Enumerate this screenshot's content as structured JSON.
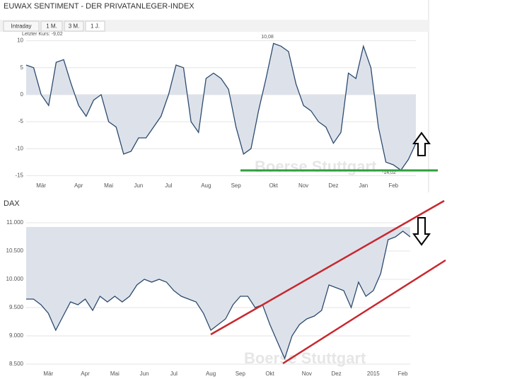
{
  "tabs": [
    "Intraday",
    "1 M.",
    "3 M.",
    "1 J."
  ],
  "chart_data": [
    {
      "type": "area",
      "title": "EUWAX SENTIMENT - DER PRIVATANLEGER-INDEX",
      "annotations": [
        "Letzter Kurs: -9,02",
        "10,08",
        "-14,02"
      ],
      "watermark": "Boerse Stuttgart",
      "color": "#2b4a6f",
      "fill": "#dde2ea",
      "grid": true,
      "ylim": [
        -16,
        11
      ],
      "yticks": [
        -15,
        -10,
        -5,
        0,
        5,
        10
      ],
      "categories": [
        null,
        null,
        "Mär",
        null,
        null,
        null,
        null,
        "Apr",
        null,
        null,
        null,
        "Mai",
        null,
        null,
        null,
        "Jun",
        null,
        null,
        null,
        "Jul",
        null,
        null,
        null,
        null,
        "Aug",
        null,
        null,
        null,
        "Sep",
        null,
        null,
        null,
        null,
        "Okt",
        null,
        null,
        null,
        "Nov",
        null,
        null,
        null,
        "Dez",
        null,
        null,
        null,
        "Jan",
        null,
        null,
        null,
        "Feb",
        null,
        null,
        null
      ],
      "values": [
        5.5,
        5,
        0,
        -2,
        6,
        6.5,
        2,
        -2,
        -4,
        -1,
        0,
        -5,
        -6,
        -11,
        -10.5,
        -8,
        -8,
        -6,
        -4,
        0,
        5.5,
        5,
        -5,
        -7,
        3,
        4,
        3,
        1,
        -6,
        -11,
        -10,
        -3,
        3,
        9.5,
        9,
        8,
        2,
        -2,
        -3,
        -5,
        -6,
        -9,
        -7,
        4,
        3,
        9,
        5,
        -6,
        -12.5,
        -13,
        -14,
        -12,
        -9.02
      ]
    },
    {
      "type": "area",
      "title": "DAX",
      "watermark": "Boerse Stuttgart",
      "color": "#2b4a6f",
      "fill": "#dde2ea",
      "grid": true,
      "ylim": [
        8450,
        11050
      ],
      "yticks": [
        {
          "value": 8500,
          "label": "8.500"
        },
        {
          "value": 9000,
          "label": "9.000"
        },
        {
          "value": 9500,
          "label": "9.500"
        },
        {
          "value": 10000,
          "label": "10.000"
        },
        {
          "value": 10500,
          "label": "10.500"
        },
        {
          "value": 11000,
          "label": "11.000"
        }
      ],
      "categories": [
        null,
        null,
        null,
        "Mär",
        null,
        null,
        null,
        null,
        "Apr",
        null,
        null,
        null,
        "Mai",
        null,
        null,
        null,
        "Jun",
        null,
        null,
        null,
        "Jul",
        null,
        null,
        null,
        null,
        "Aug",
        null,
        null,
        null,
        "Sep",
        null,
        null,
        null,
        "Okt",
        null,
        null,
        null,
        null,
        "Nov",
        null,
        null,
        null,
        "Dez",
        null,
        null,
        null,
        null,
        "2015",
        null,
        null,
        null,
        "Feb",
        null
      ],
      "values": [
        9650,
        9650,
        9550,
        9400,
        9100,
        9350,
        9600,
        9550,
        9650,
        9450,
        9700,
        9600,
        9700,
        9600,
        9700,
        9900,
        10000,
        9950,
        10000,
        9950,
        9800,
        9700,
        9650,
        9600,
        9400,
        9100,
        9200,
        9300,
        9550,
        9700,
        9700,
        9500,
        9550,
        9200,
        8900,
        8600,
        9000,
        9200,
        9300,
        9350,
        9450,
        9900,
        9850,
        9800,
        9500,
        9950,
        9700,
        9800,
        10100,
        10700,
        10750,
        10850,
        10750
      ]
    }
  ]
}
